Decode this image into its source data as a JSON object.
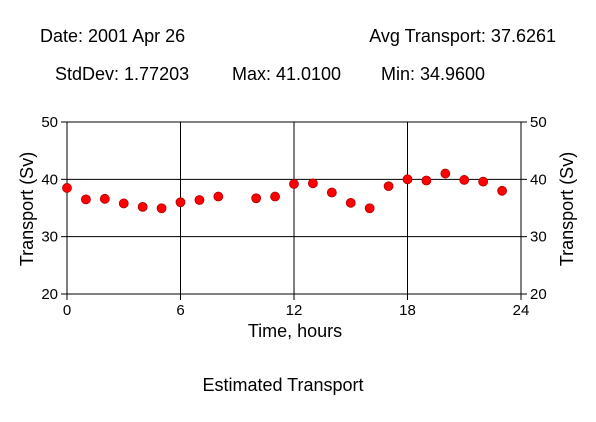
{
  "header": {
    "date_text": "Date: 2001 Apr 26",
    "avg_text": "Avg Transport: 37.6261",
    "stddev_text": "StdDev: 1.77203",
    "max_text": "Max: 41.0100",
    "min_text": "Min: 34.9600"
  },
  "caption": "Estimated Transport",
  "colors": {
    "point": "#ff0000",
    "point_outline": "#b00000",
    "grid": "#000000",
    "axis": "#000000"
  },
  "chart_data": {
    "type": "scatter",
    "xlabel": "Time, hours",
    "ylabel_left": "Transport (Sv)",
    "ylabel_right": "Transport (Sv)",
    "xlim": [
      0,
      24
    ],
    "ylim": [
      20,
      50
    ],
    "x_ticks": [
      0,
      6,
      12,
      18,
      24
    ],
    "y_ticks": [
      20,
      30,
      40,
      50
    ],
    "grid": true,
    "points": [
      {
        "x": 0,
        "y": 38.5
      },
      {
        "x": 1,
        "y": 36.5
      },
      {
        "x": 2,
        "y": 36.6
      },
      {
        "x": 3,
        "y": 35.8
      },
      {
        "x": 4,
        "y": 35.2
      },
      {
        "x": 5,
        "y": 34.96
      },
      {
        "x": 6,
        "y": 36.0
      },
      {
        "x": 7,
        "y": 36.4
      },
      {
        "x": 8,
        "y": 37.0
      },
      {
        "x": 10,
        "y": 36.7
      },
      {
        "x": 11,
        "y": 37.0
      },
      {
        "x": 12,
        "y": 39.2
      },
      {
        "x": 13,
        "y": 39.3
      },
      {
        "x": 14,
        "y": 37.7
      },
      {
        "x": 15,
        "y": 35.9
      },
      {
        "x": 16,
        "y": 34.96
      },
      {
        "x": 17,
        "y": 38.8
      },
      {
        "x": 18,
        "y": 40.0
      },
      {
        "x": 19,
        "y": 39.8
      },
      {
        "x": 20,
        "y": 41.01
      },
      {
        "x": 21,
        "y": 39.9
      },
      {
        "x": 22,
        "y": 39.6
      },
      {
        "x": 23,
        "y": 38.0
      }
    ]
  }
}
